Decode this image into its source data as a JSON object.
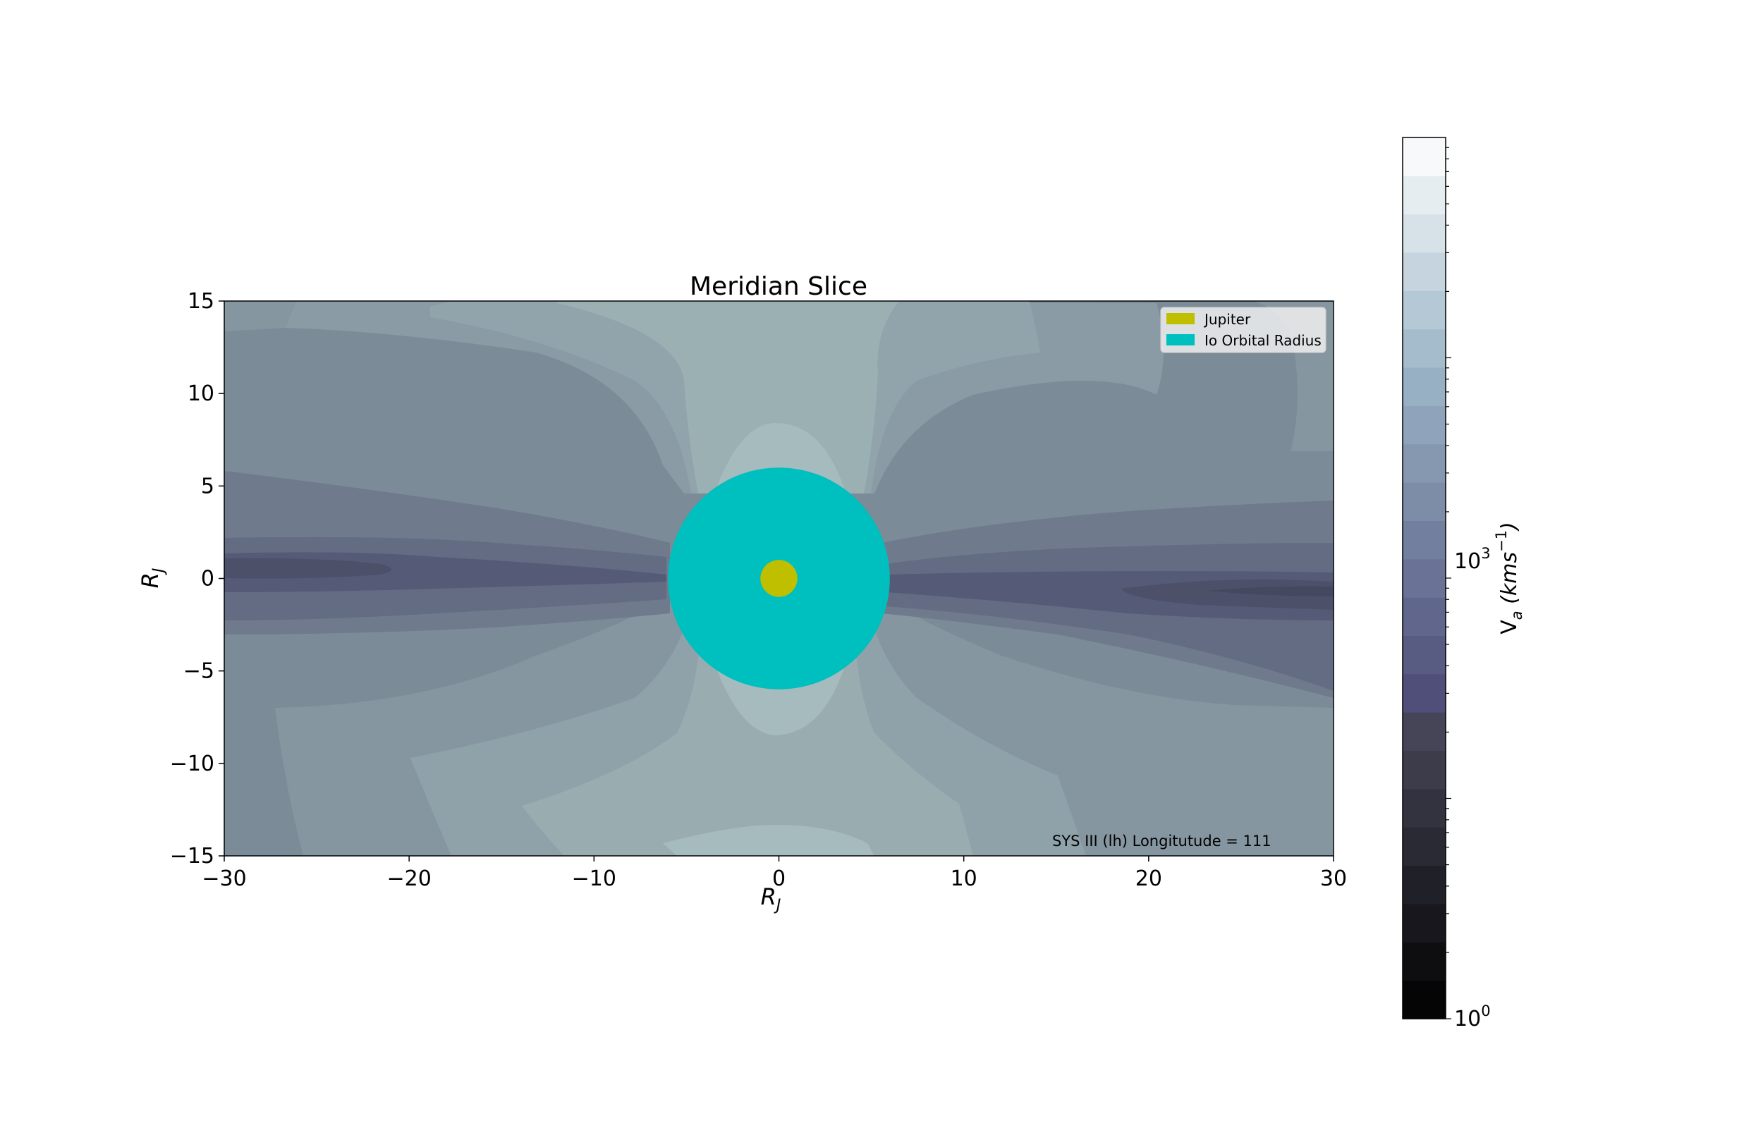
{
  "chart_data": {
    "type": "heatmap",
    "subtype": "filled-contour",
    "title": "Meridian Slice",
    "xlabel": "R_J",
    "ylabel": "R_J",
    "xlim": [
      -30,
      30
    ],
    "ylim": [
      -15,
      15
    ],
    "xticks": [
      -30,
      -20,
      -10,
      0,
      10,
      20,
      30
    ],
    "yticks": [
      -15,
      -10,
      -5,
      0,
      5,
      10,
      15
    ],
    "xtick_labels": [
      "−30",
      "−20",
      "−10",
      "0",
      "10",
      "20",
      "30"
    ],
    "ytick_labels": [
      "−15",
      "−10",
      "−5",
      "0",
      "5",
      "10",
      "15"
    ],
    "colormap": "bone",
    "color_scale": "log",
    "grid": false,
    "legend": {
      "placement": "top-right",
      "entries": [
        {
          "label": "Jupiter",
          "color": "#bfbf00"
        },
        {
          "label": "Io Orbital Radius",
          "color": "#00bfbf"
        }
      ]
    },
    "shapes": [
      {
        "name": "Io Orbital Radius",
        "center": [
          0,
          0
        ],
        "radius": 6,
        "color": "#00bfbf"
      },
      {
        "name": "Jupiter",
        "center": [
          0,
          0
        ],
        "radius": 1,
        "color": "#bfbf00"
      }
    ],
    "annotation": "SYS III (lh) Longitutude = 111",
    "colorbar": {
      "label_base": "V",
      "label_sub": "a",
      "label_units_base": " (kms",
      "label_units_sup": "−1",
      "label_units_close": ")",
      "scale": "log",
      "range": [
        1,
        10000
      ],
      "tick_labels": [
        {
          "value": 1,
          "base": "10",
          "exp": "0"
        },
        {
          "value": 1000,
          "base": "10",
          "exp": "3"
        }
      ]
    }
  }
}
